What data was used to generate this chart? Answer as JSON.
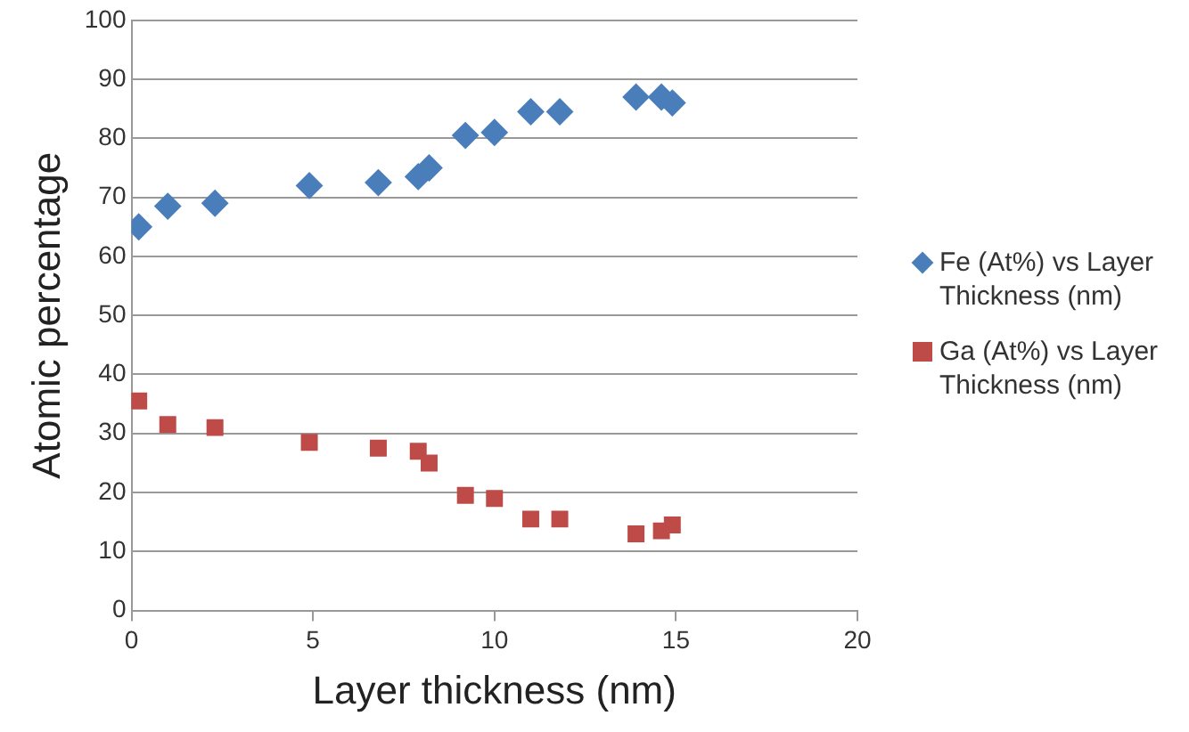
{
  "chart_data": {
    "type": "scatter",
    "xlabel": "Layer thickness (nm)",
    "ylabel": "Atomic percentage",
    "xlim": [
      0,
      20
    ],
    "xticks": [
      0,
      5,
      10,
      15,
      20
    ],
    "ylim": [
      0,
      100
    ],
    "yticks": [
      0,
      10,
      20,
      30,
      40,
      50,
      60,
      70,
      80,
      90,
      100
    ],
    "grid": "y",
    "legend": "right",
    "series": [
      {
        "name": "Fe (At%) vs Layer Thickness (nm)",
        "color": "#4a7ebb",
        "marker": "diamond",
        "x": [
          0.2,
          1,
          2.3,
          4.9,
          6.8,
          7.9,
          8.2,
          9.2,
          10,
          11,
          11.8,
          13.9,
          14.6,
          14.9
        ],
        "values": [
          65,
          68.5,
          69,
          72,
          72.5,
          73.5,
          75,
          80.5,
          81,
          84.5,
          84.5,
          87,
          87,
          86
        ]
      },
      {
        "name": "Ga (At%) vs Layer Thickness (nm)",
        "color": "#be4b48",
        "marker": "square",
        "x": [
          0.2,
          1,
          2.3,
          4.9,
          6.8,
          7.9,
          8.2,
          9.2,
          10,
          11,
          11.8,
          13.9,
          14.6,
          14.9
        ],
        "values": [
          35.5,
          31.5,
          31,
          28.5,
          27.5,
          27,
          25,
          19.5,
          19,
          15.5,
          15.5,
          13,
          13.5,
          14.5
        ]
      }
    ]
  }
}
